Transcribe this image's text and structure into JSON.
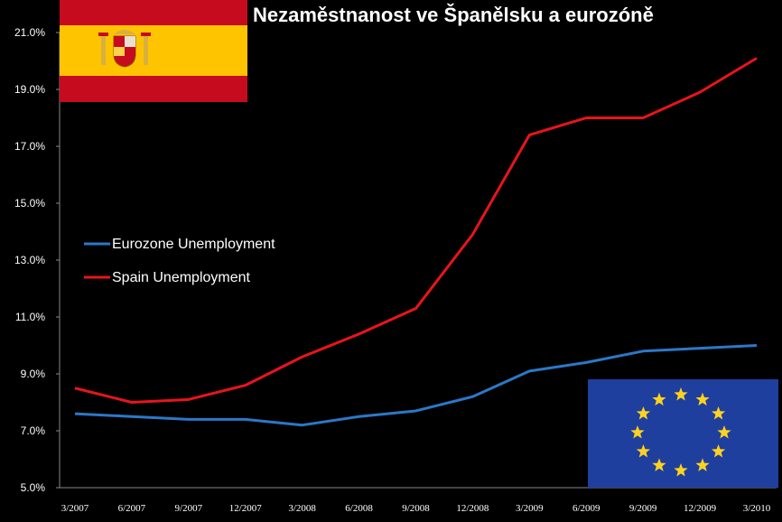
{
  "title": "Nezaměstnanost ve Španělsku a eurozóně",
  "colors": {
    "spain": "#e8141c",
    "eurozone": "#2b78c8",
    "background": "#000000",
    "text": "#ffffff"
  },
  "icons": {
    "spain_flag": "spain-flag-icon",
    "eu_flag": "eu-flag-icon"
  },
  "chart_data": {
    "type": "line",
    "categories": [
      "3/2007",
      "6/2007",
      "9/2007",
      "12/2007",
      "3/2008",
      "6/2008",
      "9/2008",
      "12/2008",
      "3/2009",
      "6/2009",
      "9/2009",
      "12/2009",
      "3/2010"
    ],
    "yticks": [
      "5.0%",
      "7.0%",
      "9.0%",
      "11.0%",
      "13.0%",
      "15.0%",
      "17.0%",
      "19.0%",
      "21.0%"
    ],
    "ylim": [
      5,
      21
    ],
    "ylabel": "",
    "xlabel": "",
    "grid": false,
    "legend_position": "left-middle",
    "series": [
      {
        "name": "Eurozone Unemployment",
        "color": "#2b78c8",
        "values": [
          7.6,
          7.5,
          7.4,
          7.4,
          7.2,
          7.5,
          7.7,
          8.2,
          9.1,
          9.4,
          9.8,
          9.9,
          10.0
        ]
      },
      {
        "name": "Spain Unemployment",
        "color": "#e8141c",
        "values": [
          8.5,
          8.0,
          8.1,
          8.6,
          9.6,
          10.4,
          11.3,
          13.9,
          17.4,
          18.0,
          18.0,
          18.9,
          20.1
        ]
      }
    ]
  }
}
